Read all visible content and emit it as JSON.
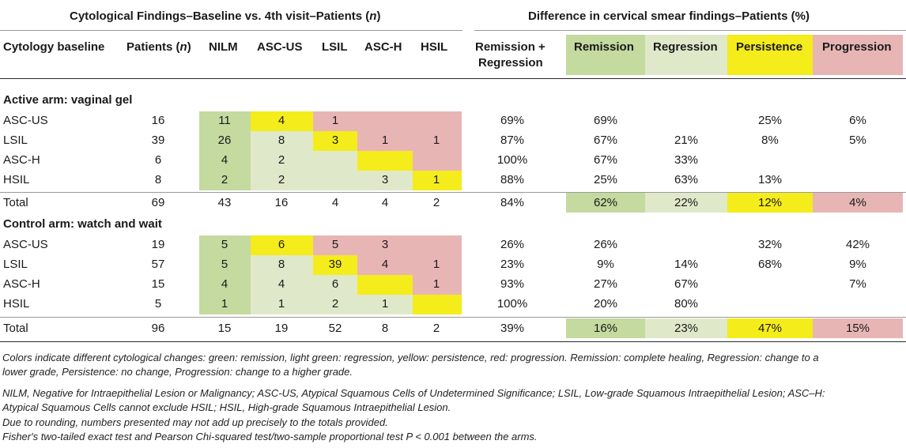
{
  "header": {
    "group_left": "Cytological Findings–Baseline vs. 4th visit–Patients (n)",
    "group_left_pre": "Cytological Findings–Baseline vs. 4th visit–Patients (",
    "group_left_n": "n",
    "group_left_post": ")",
    "group_right": "Difference in cervical smear findings–Patients (%)",
    "columns": {
      "cytology_baseline": "Cytology baseline",
      "patients_pre": "Patients (",
      "patients_n": "n",
      "patients_post": ")",
      "nilm": "NILM",
      "ascus": "ASC-US",
      "lsil": "LSIL",
      "asch": "ASC-H",
      "hsil": "HSIL",
      "rem_reg_line1": "Remission +",
      "rem_reg_line2": "Regression",
      "remission": "Remission",
      "regression": "Regression",
      "persistence": "Persistence",
      "progression": "Progression"
    }
  },
  "colors": {
    "remission": "#c4da9f",
    "regression": "#dfe9ca",
    "persistence": "#f5ec1b",
    "progression": "#e8b5b5"
  },
  "active": {
    "title": "Active arm: vaginal gel",
    "rows": [
      {
        "label": "ASC-US",
        "patients": "16",
        "nilm": "11",
        "ascus": "4",
        "lsil": "1",
        "asch": "",
        "hsil": "",
        "remreg": "69%",
        "remission": "69%",
        "regression": "",
        "persistence": "25%",
        "progression": "6%"
      },
      {
        "label": "LSIL",
        "patients": "39",
        "nilm": "26",
        "ascus": "8",
        "lsil": "3",
        "asch": "1",
        "hsil": "1",
        "remreg": "87%",
        "remission": "67%",
        "regression": "21%",
        "persistence": "8%",
        "progression": "5%"
      },
      {
        "label": "ASC-H",
        "patients": "6",
        "nilm": "4",
        "ascus": "2",
        "lsil": "",
        "asch": "",
        "hsil": "",
        "remreg": "100%",
        "remission": "67%",
        "regression": "33%",
        "persistence": "",
        "progression": ""
      },
      {
        "label": "HSIL",
        "patients": "8",
        "nilm": "2",
        "ascus": "2",
        "lsil": "",
        "asch": "3",
        "hsil": "1",
        "remreg": "88%",
        "remission": "25%",
        "regression": "63%",
        "persistence": "13%",
        "progression": ""
      }
    ],
    "total": {
      "label": "Total",
      "patients": "69",
      "nilm": "43",
      "ascus": "16",
      "lsil": "4",
      "asch": "4",
      "hsil": "2",
      "remreg": "84%",
      "remission": "62%",
      "regression": "22%",
      "persistence": "12%",
      "progression": "4%"
    }
  },
  "control": {
    "title": "Control arm: watch and wait",
    "rows": [
      {
        "label": "ASC-US",
        "patients": "19",
        "nilm": "5",
        "ascus": "6",
        "lsil": "5",
        "asch": "3",
        "hsil": "",
        "remreg": "26%",
        "remission": "26%",
        "regression": "",
        "persistence": "32%",
        "progression": "42%"
      },
      {
        "label": "LSIL",
        "patients": "57",
        "nilm": "5",
        "ascus": "8",
        "lsil": "39",
        "asch": "4",
        "hsil": "1",
        "remreg": "23%",
        "remission": "9%",
        "regression": "14%",
        "persistence": "68%",
        "progression": "9%"
      },
      {
        "label": "ASC-H",
        "patients": "15",
        "nilm": "4",
        "ascus": "4",
        "lsil": "6",
        "asch": "",
        "hsil": "1",
        "remreg": "93%",
        "remission": "27%",
        "regression": "67%",
        "persistence": "",
        "progression": "7%"
      },
      {
        "label": "HSIL",
        "patients": "5",
        "nilm": "1",
        "ascus": "1",
        "lsil": "2",
        "asch": "1",
        "hsil": "",
        "remreg": "100%",
        "remission": "20%",
        "regression": "80%",
        "persistence": "",
        "progression": ""
      }
    ],
    "total": {
      "label": "Total",
      "patients": "96",
      "nilm": "15",
      "ascus": "19",
      "lsil": "52",
      "asch": "8",
      "hsil": "2",
      "remreg": "39%",
      "remission": "16%",
      "regression": "23%",
      "persistence": "47%",
      "progression": "15%"
    }
  },
  "notes": {
    "line1": "Colors indicate different cytological changes: green: remission, light green: regression, yellow: persistence, red: progression. Remission: complete healing, Regression: change to a",
    "line2": "lower grade, Persistence: no change, Progression: change to a higher grade.",
    "line3": "NILM, Negative for Intraepithelial Lesion or Malignancy; ASC-US, Atypical Squamous Cells of Undetermined Significance; LSIL, Low-grade Squamous Intraepithelial Lesion; ASC–H:",
    "line4": "Atypical Squamous Cells cannot exclude HSIL; HSIL, High-grade Squamous Intraepithelial Lesion.",
    "line5": "Due to rounding, numbers presented may not add up precisely to the totals provided.",
    "line6": "Fisher's two-tailed exact test and Pearson Chi-squared test/two-sample proportional test P < 0.001 between the arms."
  }
}
